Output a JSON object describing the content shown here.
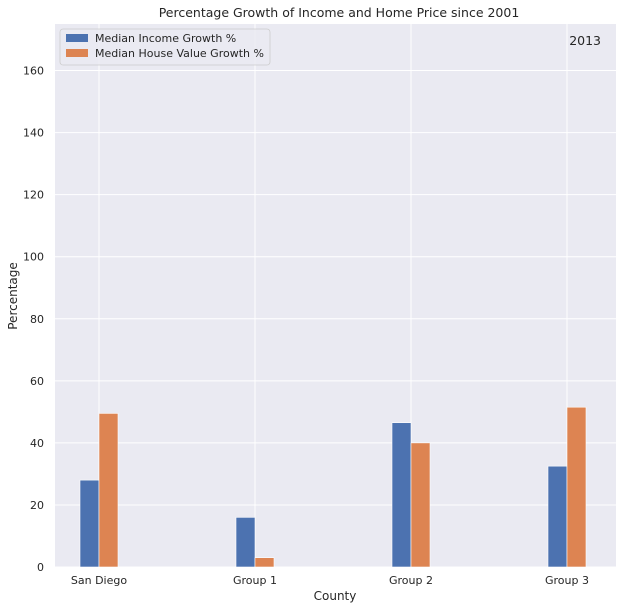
{
  "chart_data": {
    "type": "bar",
    "title": "Percentage Growth of Income and Home Price since 2001",
    "xlabel": "County",
    "ylabel": "Percentage",
    "categories": [
      "San Diego",
      "Group 1",
      "Group 2",
      "Group 3"
    ],
    "series": [
      {
        "name": "Median Income Growth %",
        "values": [
          28,
          16,
          46.5,
          32.5
        ],
        "color": "#4c72b0"
      },
      {
        "name": "Median House Value Growth %",
        "values": [
          49.5,
          3,
          40,
          51.5
        ],
        "color": "#dd8452"
      }
    ],
    "ylim": [
      0,
      175
    ],
    "yticks": [
      0,
      20,
      40,
      60,
      80,
      100,
      120,
      140,
      160
    ],
    "grid": true,
    "legend_position": "top-left",
    "annotation": "2013",
    "plot_background": "#eaeaf2",
    "grid_color": "#ffffff"
  }
}
